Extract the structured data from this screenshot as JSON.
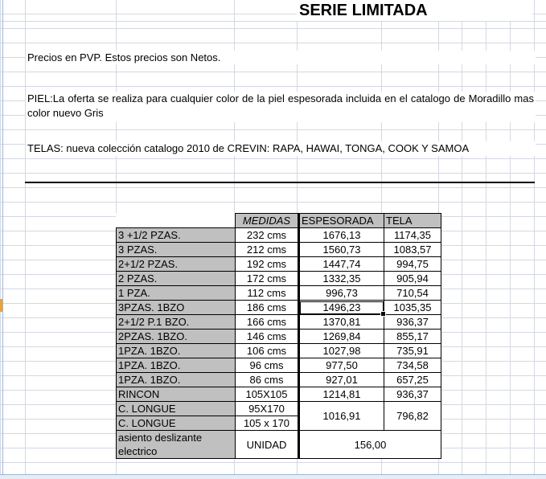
{
  "sheet": {
    "title": "SERIE LIMITADA",
    "note_prices": "Precios en PVP. Estos precios son Netos.",
    "note_piel": "PIEL:La oferta se realiza para cualquier color de la piel espesorada incluida en el catalogo de Moradillo mas color nuevo Gris",
    "note_telas": "TELAS: nueva colección catalogo 2010 de CREVIN: RAPA, HAWAI, TONGA, COOK Y SAMOA"
  },
  "table": {
    "headers": [
      "MEDIDAS",
      "ESPESORADA",
      "TELA"
    ],
    "rows": [
      {
        "model": "3 +1/2 PZAS.",
        "medidas": "232 cms",
        "espesorada": "1676,13",
        "tela": "1174,35"
      },
      {
        "model": "3 PZAS.",
        "medidas": "212 cms",
        "espesorada": "1560,73",
        "tela": "1083,57"
      },
      {
        "model": "2+1/2 PZAS.",
        "medidas": "192 cms",
        "espesorada": "1447,74",
        "tela": "994,75"
      },
      {
        "model": "2 PZAS.",
        "medidas": "172 cms",
        "espesorada": "1332,35",
        "tela": "905,94"
      },
      {
        "model": "1 PZA.",
        "medidas": "112 cms",
        "espesorada": "996,73",
        "tela": "710,54"
      },
      {
        "model": "3PZAS. 1BZO",
        "medidas": "186 cms",
        "espesorada": "1496,23",
        "tela": "1035,35"
      },
      {
        "model": "2+1/2 P.1 BZO.",
        "medidas": "166 cms",
        "espesorada": "1370,81",
        "tela": "936,37"
      },
      {
        "model": "2PZAS. 1BZO.",
        "medidas": "146 cms",
        "espesorada": "1269,84",
        "tela": "855,17"
      },
      {
        "model": "1PZA. 1BZO.",
        "medidas": "106 cms",
        "espesorada": "1027,98",
        "tela": "735,91"
      },
      {
        "model": "1PZA. 1BZO.",
        "medidas": "96 cms",
        "espesorada": "977,50",
        "tela": "734,58"
      },
      {
        "model": "1PZA. 1BZO.",
        "medidas": "86 cms",
        "espesorada": "927,01",
        "tela": "657,25"
      },
      {
        "model": "RINCON",
        "medidas": "105X105",
        "espesorada": "1214,81",
        "tela": "936,37"
      }
    ],
    "longue": {
      "models": [
        "C. LONGUE",
        "C. LONGUE"
      ],
      "medidas": [
        "95X170",
        "105 x 170"
      ],
      "espesorada": "1016,91",
      "tela": "796,82"
    },
    "asiento": {
      "model": "asiento deslizante electrico",
      "medidas": "UNIDAD",
      "price": "156,00"
    }
  }
}
